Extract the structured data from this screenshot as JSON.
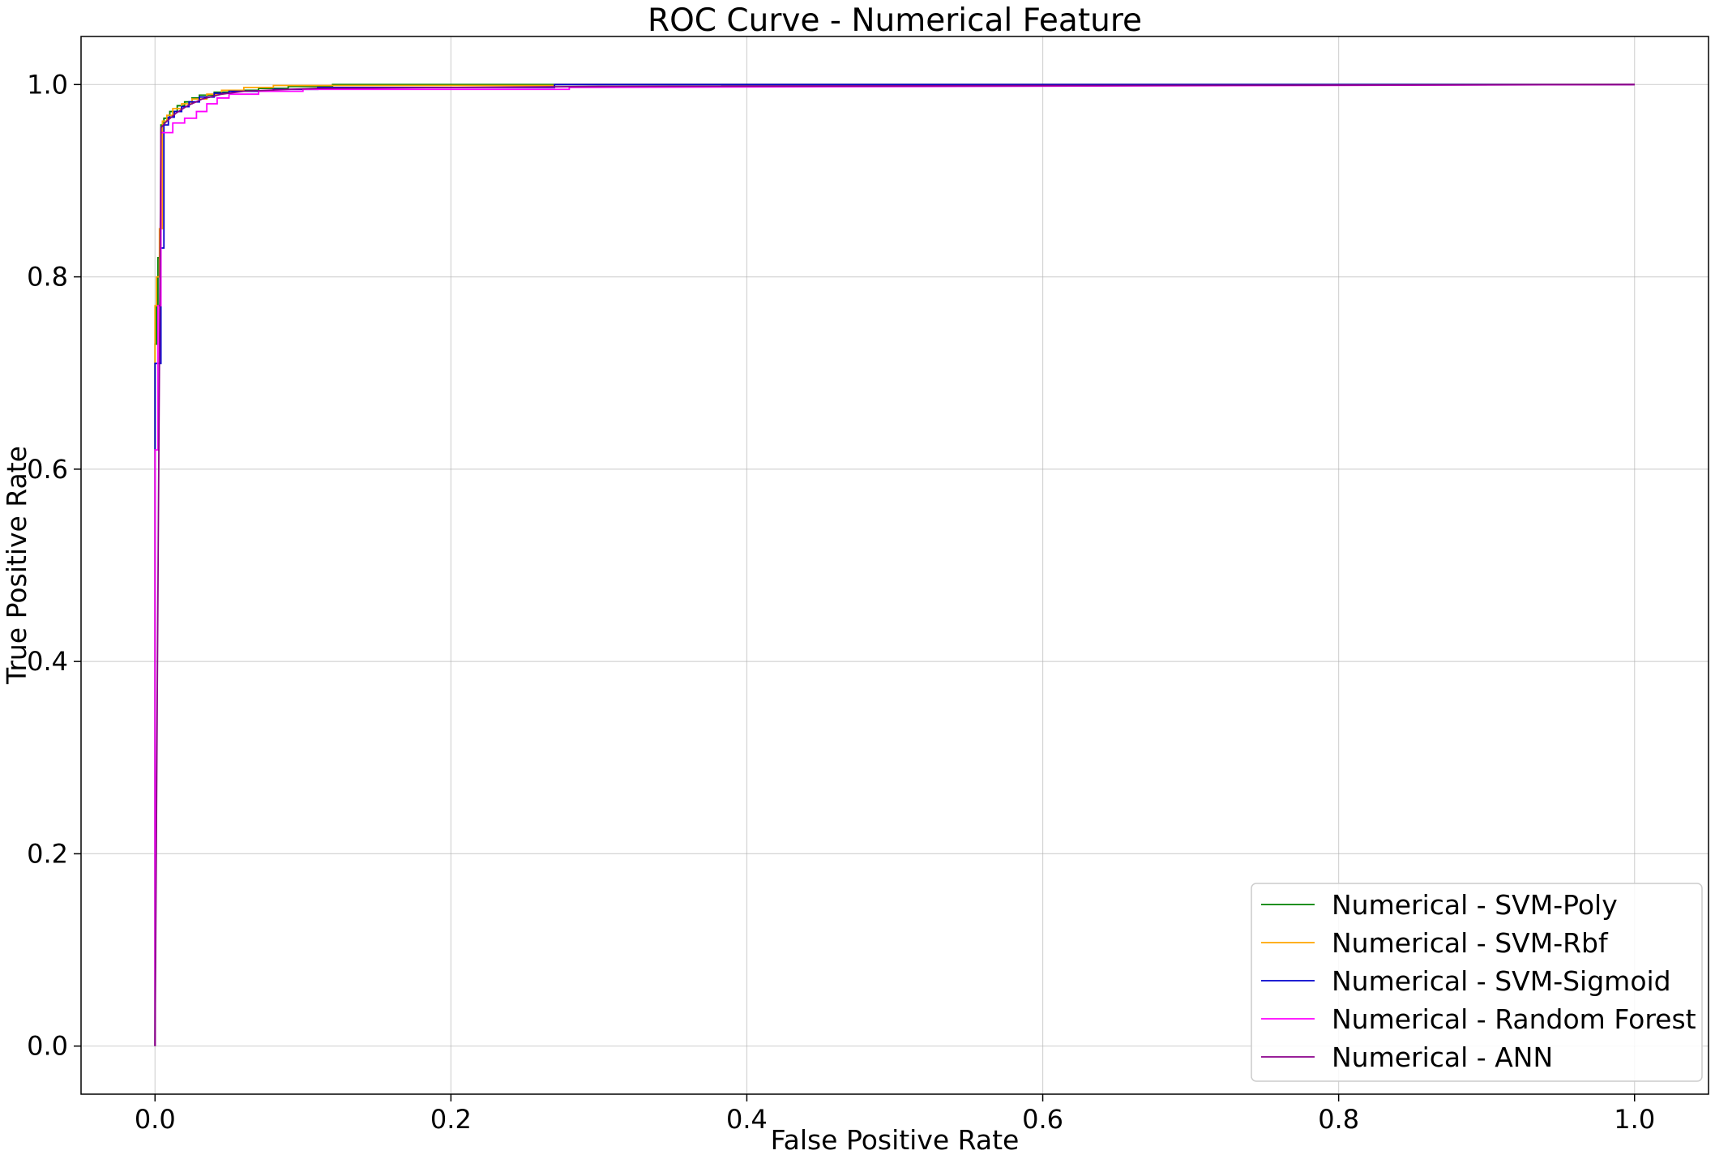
{
  "chart_data": {
    "type": "line",
    "title": "ROC Curve - Numerical Feature",
    "xlabel": "False Positive Rate",
    "ylabel": "True Positive Rate",
    "xlim": [
      -0.05,
      1.05
    ],
    "ylim": [
      -0.05,
      1.05
    ],
    "xticks": [
      0.0,
      0.2,
      0.4,
      0.6,
      0.8,
      1.0
    ],
    "yticks": [
      0.0,
      0.2,
      0.4,
      0.6,
      0.8,
      1.0
    ],
    "xtick_labels": [
      "0.0",
      "0.2",
      "0.4",
      "0.6",
      "0.8",
      "1.0"
    ],
    "ytick_labels": [
      "0.0",
      "0.2",
      "0.4",
      "0.6",
      "0.8",
      "1.0"
    ],
    "grid": true,
    "legend_position": "bottom-right",
    "series": [
      {
        "name": "Numerical - SVM-Poly",
        "color": "#008000",
        "points": [
          [
            0,
            0
          ],
          [
            0,
            0.73
          ],
          [
            0.001,
            0.73
          ],
          [
            0.001,
            0.77
          ],
          [
            0.002,
            0.77
          ],
          [
            0.002,
            0.82
          ],
          [
            0.004,
            0.82
          ],
          [
            0.004,
            0.958
          ],
          [
            0.006,
            0.958
          ],
          [
            0.006,
            0.965
          ],
          [
            0.01,
            0.965
          ],
          [
            0.01,
            0.972
          ],
          [
            0.015,
            0.972
          ],
          [
            0.015,
            0.978
          ],
          [
            0.02,
            0.978
          ],
          [
            0.02,
            0.982
          ],
          [
            0.025,
            0.982
          ],
          [
            0.025,
            0.986
          ],
          [
            0.03,
            0.986
          ],
          [
            0.03,
            0.989
          ],
          [
            0.04,
            0.989
          ],
          [
            0.04,
            0.992
          ],
          [
            0.05,
            0.992
          ],
          [
            0.05,
            0.994
          ],
          [
            0.07,
            0.994
          ],
          [
            0.07,
            0.996
          ],
          [
            0.09,
            0.996
          ],
          [
            0.09,
            0.998
          ],
          [
            0.12,
            0.998
          ],
          [
            0.12,
            1.0
          ],
          [
            1.0,
            1.0
          ]
        ]
      },
      {
        "name": "Numerical - SVM-Rbf",
        "color": "#ffa500",
        "points": [
          [
            0,
            0
          ],
          [
            0,
            0.77
          ],
          [
            0.001,
            0.77
          ],
          [
            0.001,
            0.8
          ],
          [
            0.003,
            0.8
          ],
          [
            0.003,
            0.85
          ],
          [
            0.005,
            0.85
          ],
          [
            0.005,
            0.962
          ],
          [
            0.008,
            0.962
          ],
          [
            0.008,
            0.968
          ],
          [
            0.012,
            0.968
          ],
          [
            0.012,
            0.975
          ],
          [
            0.018,
            0.975
          ],
          [
            0.018,
            0.98
          ],
          [
            0.025,
            0.98
          ],
          [
            0.025,
            0.985
          ],
          [
            0.035,
            0.985
          ],
          [
            0.035,
            0.99
          ],
          [
            0.045,
            0.99
          ],
          [
            0.045,
            0.994
          ],
          [
            0.06,
            0.994
          ],
          [
            0.06,
            0.997
          ],
          [
            0.08,
            0.997
          ],
          [
            0.08,
            0.999
          ],
          [
            0.27,
            0.999
          ],
          [
            0.27,
            1.0
          ],
          [
            1.0,
            1.0
          ]
        ]
      },
      {
        "name": "Numerical - SVM-Sigmoid",
        "color": "#0000cd",
        "points": [
          [
            0,
            0
          ],
          [
            0,
            0.71
          ],
          [
            0.004,
            0.71
          ],
          [
            0.004,
            0.83
          ],
          [
            0.006,
            0.83
          ],
          [
            0.006,
            0.958
          ],
          [
            0.009,
            0.958
          ],
          [
            0.009,
            0.966
          ],
          [
            0.013,
            0.966
          ],
          [
            0.013,
            0.972
          ],
          [
            0.018,
            0.972
          ],
          [
            0.018,
            0.977
          ],
          [
            0.023,
            0.977
          ],
          [
            0.023,
            0.982
          ],
          [
            0.03,
            0.982
          ],
          [
            0.03,
            0.987
          ],
          [
            0.04,
            0.987
          ],
          [
            0.04,
            0.991
          ],
          [
            0.05,
            0.991
          ],
          [
            0.05,
            0.993
          ],
          [
            0.08,
            0.993
          ],
          [
            0.08,
            0.995
          ],
          [
            0.11,
            0.995
          ],
          [
            0.11,
            0.997
          ],
          [
            0.27,
            0.997
          ],
          [
            0.27,
            1.0
          ],
          [
            1.0,
            1.0
          ]
        ]
      },
      {
        "name": "Numerical - Random Forest",
        "color": "#ff00ff",
        "points": [
          [
            0,
            0
          ],
          [
            0,
            0.62
          ],
          [
            0.002,
            0.62
          ],
          [
            0.002,
            0.77
          ],
          [
            0.004,
            0.77
          ],
          [
            0.004,
            0.95
          ],
          [
            0.012,
            0.95
          ],
          [
            0.012,
            0.96
          ],
          [
            0.02,
            0.96
          ],
          [
            0.02,
            0.965
          ],
          [
            0.028,
            0.965
          ],
          [
            0.028,
            0.972
          ],
          [
            0.035,
            0.972
          ],
          [
            0.035,
            0.98
          ],
          [
            0.042,
            0.98
          ],
          [
            0.042,
            0.986
          ],
          [
            0.05,
            0.986
          ],
          [
            0.05,
            0.99
          ],
          [
            0.07,
            0.99
          ],
          [
            0.07,
            0.993
          ],
          [
            0.1,
            0.993
          ],
          [
            0.1,
            0.995
          ],
          [
            0.28,
            0.995
          ],
          [
            0.28,
            0.997
          ],
          [
            1.0,
            1.0
          ]
        ]
      },
      {
        "name": "Numerical - ANN",
        "color": "#8b008b",
        "points": [
          [
            0,
            0
          ],
          [
            0.004,
            0.955
          ],
          [
            0.008,
            0.962
          ],
          [
            0.014,
            0.97
          ],
          [
            0.022,
            0.978
          ],
          [
            0.032,
            0.985
          ],
          [
            0.045,
            0.99
          ],
          [
            0.06,
            0.993
          ],
          [
            0.09,
            0.995
          ],
          [
            0.11,
            0.996
          ],
          [
            0.3,
            0.998
          ],
          [
            1.0,
            1.0
          ]
        ]
      }
    ]
  }
}
